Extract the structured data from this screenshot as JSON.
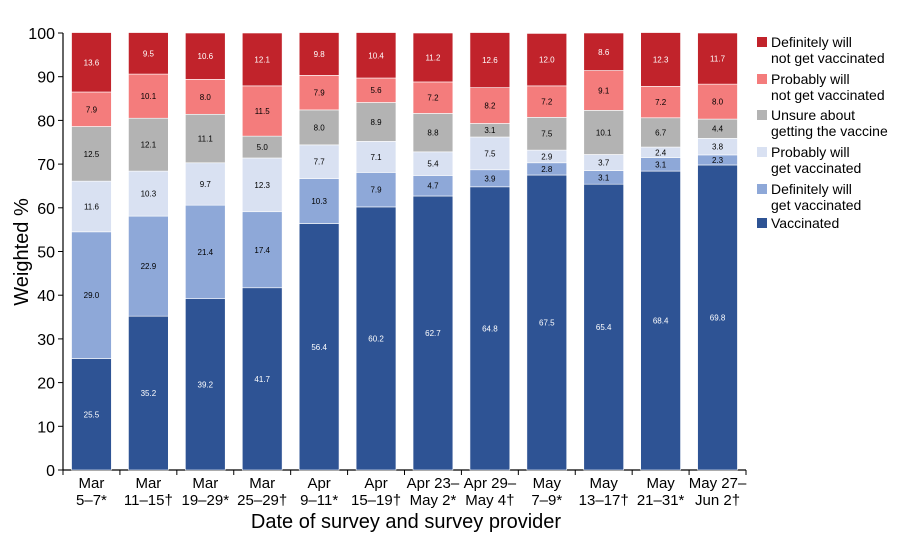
{
  "chart_data": {
    "type": "bar",
    "stacked": true,
    "xlabel": "Date of survey and survey provider",
    "ylabel": "Weighted %",
    "ylim": [
      0,
      100
    ],
    "yticks": [
      0,
      10,
      20,
      30,
      40,
      50,
      60,
      70,
      80,
      90,
      100
    ],
    "grid": false,
    "legend_position": "right",
    "categories": [
      [
        "Mar",
        "5–7*"
      ],
      [
        "Mar",
        "11–15†"
      ],
      [
        "Mar",
        "19–29*"
      ],
      [
        "Mar",
        "25–29†"
      ],
      [
        "Apr",
        "9–11*"
      ],
      [
        "Apr",
        "15–19†"
      ],
      [
        "Apr 23–",
        "May 2*"
      ],
      [
        "Apr 29–",
        "May 4†"
      ],
      [
        "May",
        "7–9*"
      ],
      [
        "May",
        "13–17†"
      ],
      [
        "May",
        "21–31*"
      ],
      [
        "May 27–",
        "Jun 2†"
      ]
    ],
    "series": [
      {
        "name": [
          "Vaccinated"
        ],
        "color": "#2E5394",
        "label_color": "#ffffff",
        "values": [
          25.5,
          35.2,
          39.2,
          41.7,
          56.4,
          60.2,
          62.7,
          64.8,
          67.5,
          65.4,
          68.4,
          69.8
        ]
      },
      {
        "name": [
          "Definitely will",
          "get vaccinated"
        ],
        "color": "#8EA8D8",
        "label_color": "#000000",
        "values": [
          29.0,
          22.9,
          21.4,
          17.4,
          10.3,
          7.9,
          4.7,
          3.9,
          2.8,
          3.1,
          3.1,
          2.3
        ]
      },
      {
        "name": [
          "Probably will",
          "get vaccinated"
        ],
        "color": "#D9E1F2",
        "label_color": "#000000",
        "values": [
          11.6,
          10.3,
          9.7,
          12.3,
          7.7,
          7.1,
          5.4,
          7.5,
          2.9,
          3.7,
          2.4,
          3.8
        ]
      },
      {
        "name": [
          "Unsure about",
          "getting the vaccine"
        ],
        "color": "#B3B3B3",
        "label_color": "#000000",
        "values": [
          12.5,
          12.1,
          11.1,
          5.0,
          8.0,
          8.9,
          8.8,
          3.1,
          7.5,
          10.1,
          6.7,
          4.4
        ]
      },
      {
        "name": [
          "Probably will",
          "not get vaccinated"
        ],
        "color": "#F47C7C",
        "label_color": "#000000",
        "values": [
          7.9,
          10.1,
          8.0,
          11.5,
          7.9,
          5.6,
          7.2,
          8.2,
          7.2,
          9.1,
          7.2,
          8.0
        ]
      },
      {
        "name": [
          "Definitely will",
          "not get vaccinated"
        ],
        "color": "#C1232B",
        "label_color": "#ffffff",
        "values": [
          13.6,
          9.5,
          10.6,
          12.1,
          9.8,
          10.4,
          11.2,
          12.6,
          12.0,
          8.6,
          12.3,
          11.7
        ]
      }
    ]
  }
}
